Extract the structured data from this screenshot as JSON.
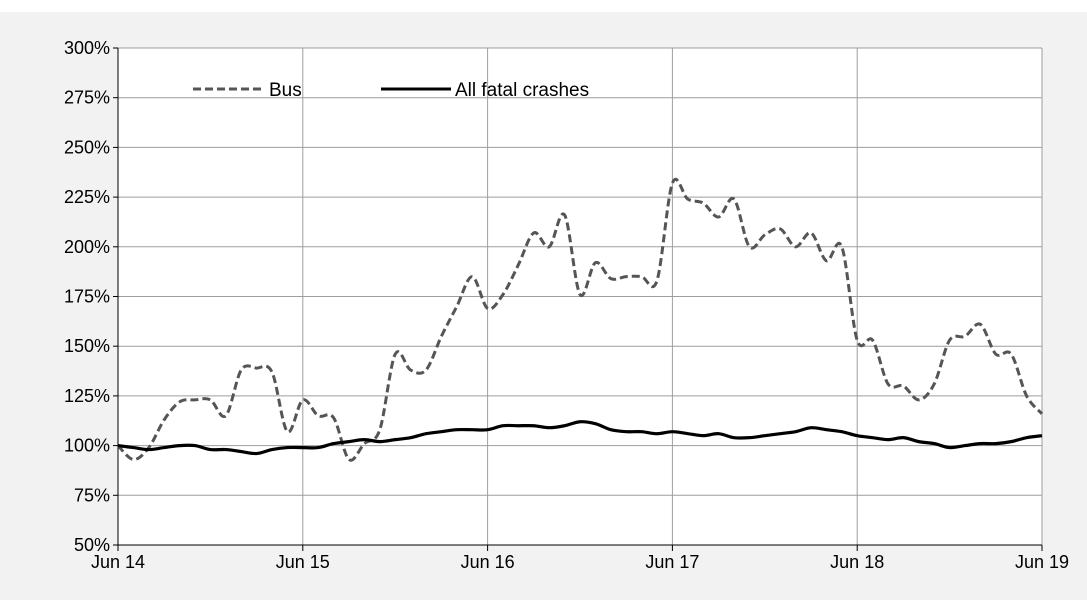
{
  "chart_data": {
    "type": "line",
    "title": "",
    "xlabel": "",
    "ylabel": "",
    "ylim": [
      50,
      300
    ],
    "yticks": [
      "50%",
      "75%",
      "100%",
      "125%",
      "150%",
      "175%",
      "200%",
      "225%",
      "250%",
      "275%",
      "300%"
    ],
    "xlim": [
      0,
      60
    ],
    "xticks": [
      {
        "pos": 0,
        "label": "Jun 14"
      },
      {
        "pos": 12,
        "label": "Jun 15"
      },
      {
        "pos": 24,
        "label": "Jun 16"
      },
      {
        "pos": 36,
        "label": "Jun 17"
      },
      {
        "pos": 48,
        "label": "Jun 18"
      },
      {
        "pos": 60,
        "label": "Jun 19"
      }
    ],
    "grid": true,
    "legend_position": "top-left",
    "series": [
      {
        "name": "Bus",
        "style": "dashed",
        "color": "#555555",
        "values": [
          100,
          93,
          99,
          113,
          122,
          123,
          123,
          115,
          138,
          139,
          137,
          107,
          123,
          115,
          114,
          93,
          101,
          108,
          146,
          138,
          138,
          155,
          170,
          185,
          169,
          176,
          191,
          207,
          200,
          216,
          176,
          192,
          184,
          185,
          185,
          183,
          232,
          224,
          222,
          215,
          224,
          200,
          206,
          209,
          200,
          207,
          193,
          200,
          153,
          153,
          131,
          130,
          123,
          131,
          153,
          155,
          161,
          146,
          146,
          125,
          116
        ]
      },
      {
        "name": "All fatal crashes",
        "style": "solid",
        "color": "#000000",
        "values": [
          100,
          99,
          98,
          99,
          100,
          100,
          98,
          98,
          97,
          96,
          98,
          99,
          99,
          99,
          101,
          102,
          103,
          102,
          103,
          104,
          106,
          107,
          108,
          108,
          108,
          110,
          110,
          110,
          109,
          110,
          112,
          111,
          108,
          107,
          107,
          106,
          107,
          106,
          105,
          106,
          104,
          104,
          105,
          106,
          107,
          109,
          108,
          107,
          105,
          104,
          103,
          104,
          102,
          101,
          99,
          100,
          101,
          101,
          102,
          104,
          105
        ]
      }
    ]
  },
  "colors": {
    "background": "#f2f2f2",
    "plot_area": "#ffffff",
    "grid": "#9e9e9e"
  }
}
